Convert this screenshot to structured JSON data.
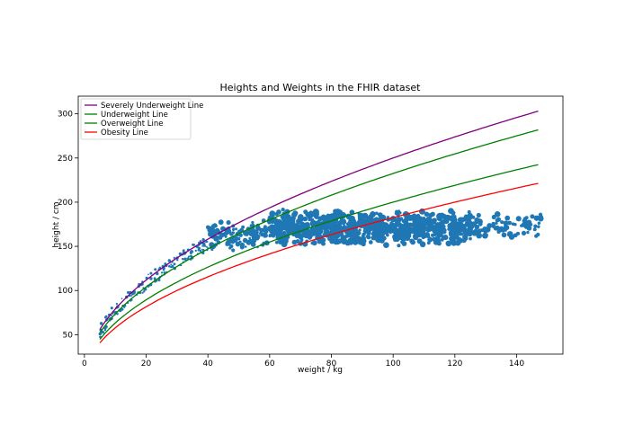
{
  "chart_data": {
    "type": "scatter",
    "title": "Heights and Weights in the FHIR dataset",
    "xlabel": "weight / kg",
    "ylabel": "height / cm",
    "xlim": [
      -2,
      155
    ],
    "ylim": [
      28,
      320
    ],
    "xticks": [
      0,
      20,
      40,
      60,
      80,
      100,
      120,
      140
    ],
    "yticks": [
      50,
      100,
      150,
      200,
      250,
      300
    ],
    "legend_position": "upper-left",
    "series": [
      {
        "name": "Severely Underweight Line",
        "type": "line",
        "color": "#800080",
        "bmi": 16,
        "x_range": [
          5,
          147
        ]
      },
      {
        "name": "Underweight Line",
        "type": "line",
        "color": "#008000",
        "bmi": 18.5,
        "x_range": [
          5,
          147
        ]
      },
      {
        "name": "Overweight Line",
        "type": "line",
        "color": "#008000",
        "bmi": 25,
        "x_range": [
          5,
          147
        ]
      },
      {
        "name": "Obesity Line",
        "type": "line",
        "color": "#ff0000",
        "bmi": 30,
        "x_range": [
          5,
          147
        ]
      }
    ],
    "scatter": {
      "color": "#1f77b4",
      "description_note": "point cloud of patient weight vs height",
      "clusters": [
        {
          "x_range": [
            5,
            40
          ],
          "height_follows_bmi": 17,
          "jitter": 8,
          "count": 170,
          "size_range": [
            0.8,
            1.8
          ]
        },
        {
          "x_range": [
            40,
            60
          ],
          "y_range": [
            145,
            182
          ],
          "count": 140,
          "size_range": [
            1.2,
            3.2
          ]
        },
        {
          "x_range": [
            60,
            125
          ],
          "y_range": [
            150,
            192
          ],
          "count": 900,
          "size_range": [
            1.6,
            3.6
          ]
        },
        {
          "x_range": [
            125,
            148
          ],
          "y_range": [
            158,
            188
          ],
          "count": 90,
          "size_range": [
            1.6,
            3.4
          ]
        }
      ]
    }
  }
}
